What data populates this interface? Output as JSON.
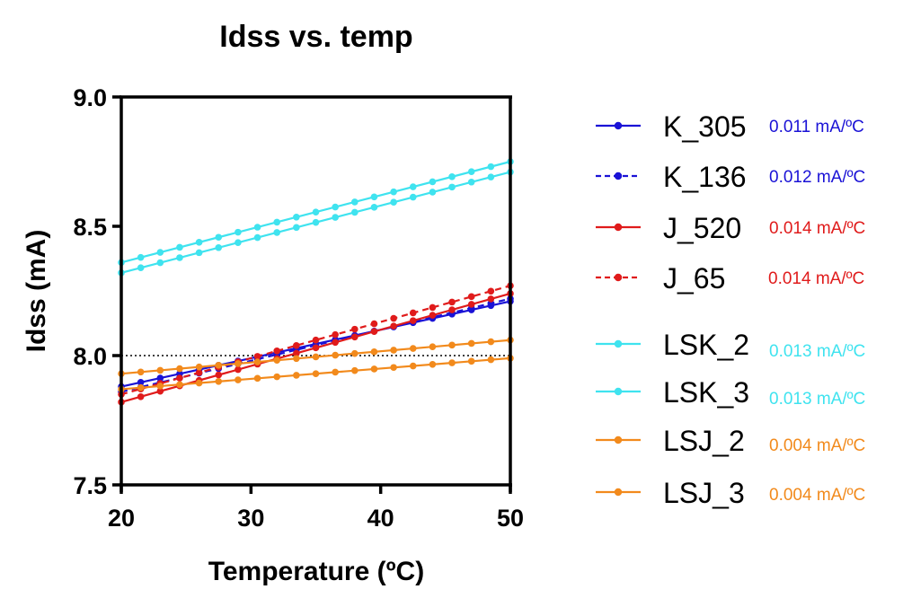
{
  "chart_data": {
    "type": "line",
    "title": "Idss vs. temp",
    "xlabel": "Temperature (ºC)",
    "ylabel": "Idss (mA)",
    "xlim": [
      20,
      50
    ],
    "ylim": [
      7.5,
      9.0
    ],
    "xticks": [
      "20",
      "30",
      "40",
      "50"
    ],
    "yticks": [
      "7.5",
      "8.0",
      "8.5",
      "9.0"
    ],
    "reference_line": {
      "y": 8.0,
      "style": "dotted",
      "color": "#000000"
    },
    "grid": false,
    "legend_position": "right",
    "series": [
      {
        "name": "K_305",
        "color": "#1a12d6",
        "dash": "solid",
        "slope_label": "0.011 mA/ºC",
        "label_color": "#1a12d6",
        "x_start": 20,
        "x_end": 50,
        "y_start": 7.88,
        "y_end": 8.21
      },
      {
        "name": "K_136",
        "color": "#1a12d6",
        "dash": "dashed",
        "slope_label": "0.012 mA/ºC",
        "label_color": "#1a12d6",
        "x_start": 20,
        "x_end": 50,
        "y_start": 7.86,
        "y_end": 8.22
      },
      {
        "name": "J_520",
        "color": "#e01b1b",
        "dash": "solid",
        "slope_label": "0.014 mA/ºC",
        "label_color": "#e01b1b",
        "x_start": 20,
        "x_end": 50,
        "y_start": 7.82,
        "y_end": 8.24
      },
      {
        "name": "J_65",
        "color": "#e01b1b",
        "dash": "dashed",
        "slope_label": "0.014 mA/ºC",
        "label_color": "#e01b1b",
        "x_start": 20,
        "x_end": 50,
        "y_start": 7.85,
        "y_end": 8.27
      },
      {
        "name": "LSK_2",
        "color": "#3fe3ef",
        "dash": "solid",
        "slope_label": "0.013 mA/ºC",
        "label_color": "#3fe3ef",
        "x_start": 20,
        "x_end": 50,
        "y_start": 8.36,
        "y_end": 8.75
      },
      {
        "name": "LSK_3",
        "color": "#3fe3ef",
        "dash": "solid",
        "slope_label": "0.013 mA/ºC",
        "label_color": "#3fe3ef",
        "x_start": 20,
        "x_end": 50,
        "y_start": 8.32,
        "y_end": 8.71
      },
      {
        "name": "LSJ_2",
        "color": "#f28a1c",
        "dash": "solid",
        "slope_label": "0.004 mA/ºC",
        "label_color": "#f28a1c",
        "x_start": 20,
        "x_end": 50,
        "y_start": 7.93,
        "y_end": 8.06
      },
      {
        "name": "LSJ_3",
        "color": "#f28a1c",
        "dash": "solid",
        "slope_label": "0.004 mA/ºC",
        "label_color": "#f28a1c",
        "x_start": 20,
        "x_end": 50,
        "y_start": 7.87,
        "y_end": 7.99
      }
    ]
  }
}
